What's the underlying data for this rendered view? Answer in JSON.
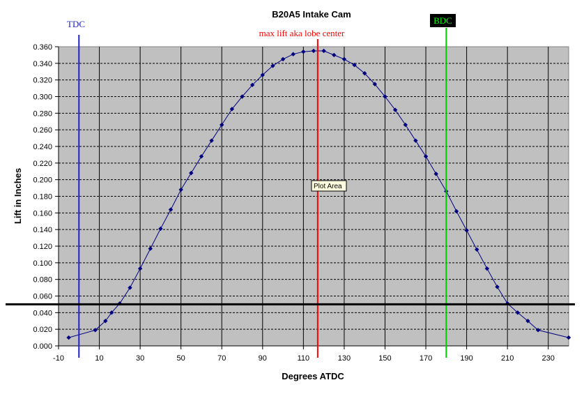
{
  "chart_data": {
    "type": "line",
    "title": "B20A5 Intake Cam",
    "xlabel": "Degrees ATDC",
    "ylabel": "Lift in Inches",
    "xlim": [
      -10,
      240
    ],
    "ylim": [
      0,
      0.36
    ],
    "x_ticks": [
      "-10",
      "10",
      "30",
      "50",
      "70",
      "90",
      "110",
      "130",
      "150",
      "170",
      "190",
      "210",
      "230"
    ],
    "y_ticks": [
      "0.000",
      "0.020",
      "0.040",
      "0.060",
      "0.080",
      "0.100",
      "0.120",
      "0.140",
      "0.160",
      "0.180",
      "0.200",
      "0.220",
      "0.240",
      "0.260",
      "0.280",
      "0.300",
      "0.320",
      "0.340",
      "0.360"
    ],
    "grid": true,
    "plot_area_color": "#c0c0c0",
    "series": [
      {
        "color": "#000080",
        "x": [
          -5,
          8,
          13,
          16,
          20,
          25,
          30,
          35,
          40,
          45,
          50,
          55,
          60,
          65,
          70,
          75,
          80,
          85,
          90,
          95,
          100,
          105,
          110,
          115,
          120,
          125,
          130,
          135,
          140,
          145,
          150,
          155,
          160,
          165,
          170,
          175,
          180,
          185,
          190,
          195,
          200,
          205,
          210,
          215,
          220,
          225,
          240
        ],
        "y": [
          0.01,
          0.019,
          0.03,
          0.04,
          0.051,
          0.07,
          0.093,
          0.117,
          0.141,
          0.164,
          0.188,
          0.208,
          0.228,
          0.247,
          0.266,
          0.285,
          0.3,
          0.314,
          0.326,
          0.337,
          0.345,
          0.351,
          0.354,
          0.355,
          0.355,
          0.35,
          0.345,
          0.338,
          0.328,
          0.315,
          0.3,
          0.284,
          0.266,
          0.247,
          0.228,
          0.207,
          0.186,
          0.162,
          0.139,
          0.116,
          0.093,
          0.071,
          0.051,
          0.04,
          0.03,
          0.019,
          0.01
        ]
      }
    ],
    "reference_lines": [
      {
        "label": "TDC",
        "x": 0,
        "color": "#2020d0"
      },
      {
        "label": "max lift aka lobe center",
        "x": 117,
        "color": "#ff0000"
      },
      {
        "label": "BDC",
        "x": 180,
        "color": "#00cc00"
      }
    ],
    "threshold_line": {
      "y": 0.05,
      "color": "#000000"
    },
    "tooltip": "Plot Area"
  }
}
